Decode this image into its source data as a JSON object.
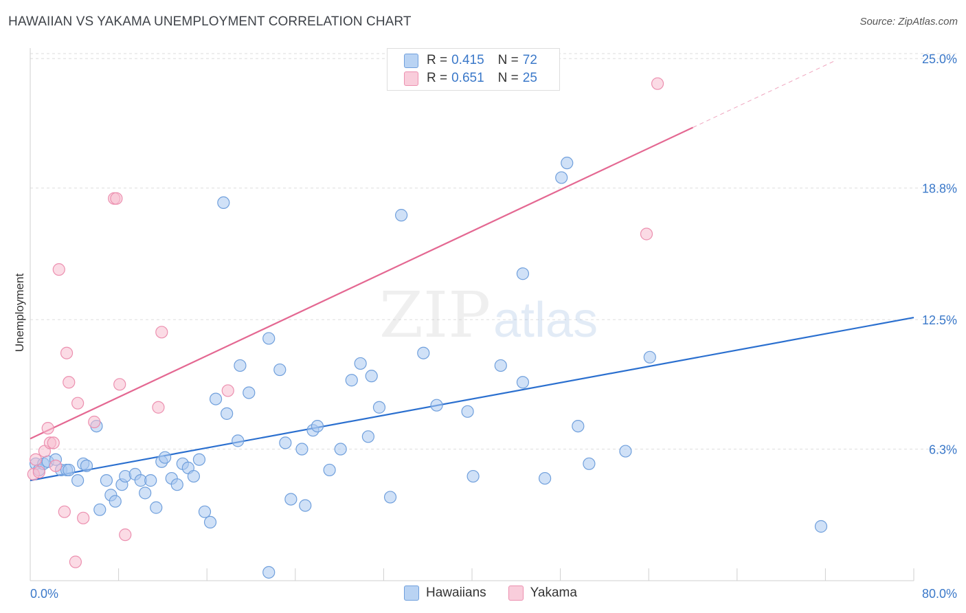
{
  "title": "HAWAIIAN VS YAKAMA UNEMPLOYMENT CORRELATION CHART",
  "source": "Source: ZipAtlas.com",
  "colors": {
    "hawaiians_fill": "#aac8f0",
    "hawaiians_stroke": "#6f9fdc",
    "hawaiians_line": "#2a6fcf",
    "yakama_fill": "#f7bdd0",
    "yakama_stroke": "#ec8faf",
    "yakama_line": "#e46892",
    "tick_text": "#3a78c9"
  },
  "legend": {
    "hawaiians": {
      "r_label": "R =",
      "r_value": "0.415",
      "n_label": "N =",
      "n_value": "72"
    },
    "yakama": {
      "r_label": "R =",
      "r_value": "0.651",
      "n_label": "N =",
      "n_value": "25"
    }
  },
  "watermark": {
    "zip": "ZIP",
    "atlas": "atlas"
  },
  "chart_data": {
    "type": "scatter",
    "title": "HAWAIIAN VS YAKAMA UNEMPLOYMENT CORRELATION CHART",
    "xlabel": "",
    "ylabel": "Unemployment",
    "xlim": [
      0,
      80
    ],
    "ylim": [
      0,
      25.5
    ],
    "x_tick_labels": [
      "0.0%",
      "80.0%"
    ],
    "y_ticks": [
      6.3,
      12.5,
      18.8,
      25.0
    ],
    "y_tick_labels": [
      "6.3%",
      "12.5%",
      "18.8%",
      "25.0%"
    ],
    "grid": true,
    "legend_position": "top-center",
    "series": [
      {
        "name": "Hawaiians",
        "points": [
          [
            0.5,
            5.6
          ],
          [
            0.8,
            5.3
          ],
          [
            1.2,
            5.6
          ],
          [
            1.6,
            5.7
          ],
          [
            2.3,
            5.8
          ],
          [
            2.8,
            5.3
          ],
          [
            3.3,
            5.3
          ],
          [
            3.5,
            5.3
          ],
          [
            4.3,
            4.8
          ],
          [
            4.8,
            5.6
          ],
          [
            5.1,
            5.5
          ],
          [
            6.0,
            7.4
          ],
          [
            6.3,
            3.4
          ],
          [
            6.9,
            4.8
          ],
          [
            7.3,
            4.1
          ],
          [
            7.7,
            3.8
          ],
          [
            8.3,
            4.6
          ],
          [
            8.6,
            5.0
          ],
          [
            9.5,
            5.1
          ],
          [
            10.0,
            4.8
          ],
          [
            10.4,
            4.2
          ],
          [
            10.9,
            4.8
          ],
          [
            11.4,
            3.5
          ],
          [
            11.9,
            5.7
          ],
          [
            12.2,
            5.9
          ],
          [
            12.8,
            4.9
          ],
          [
            13.3,
            4.6
          ],
          [
            13.8,
            5.6
          ],
          [
            14.3,
            5.4
          ],
          [
            14.8,
            5.0
          ],
          [
            15.3,
            5.8
          ],
          [
            15.8,
            3.3
          ],
          [
            16.3,
            2.8
          ],
          [
            16.8,
            8.7
          ],
          [
            17.5,
            18.1
          ],
          [
            17.8,
            8.0
          ],
          [
            18.8,
            6.7
          ],
          [
            19.0,
            10.3
          ],
          [
            19.8,
            9.0
          ],
          [
            21.6,
            11.6
          ],
          [
            21.6,
            0.4
          ],
          [
            22.6,
            10.1
          ],
          [
            23.1,
            6.6
          ],
          [
            23.6,
            3.9
          ],
          [
            24.6,
            6.3
          ],
          [
            24.9,
            3.6
          ],
          [
            25.6,
            7.2
          ],
          [
            26.0,
            7.4
          ],
          [
            27.1,
            5.3
          ],
          [
            28.1,
            6.3
          ],
          [
            29.1,
            9.6
          ],
          [
            29.9,
            10.4
          ],
          [
            30.6,
            6.9
          ],
          [
            30.9,
            9.8
          ],
          [
            31.6,
            8.3
          ],
          [
            32.6,
            4.0
          ],
          [
            33.6,
            17.5
          ],
          [
            35.6,
            10.9
          ],
          [
            36.8,
            8.4
          ],
          [
            39.6,
            8.1
          ],
          [
            40.1,
            5.0
          ],
          [
            42.6,
            10.3
          ],
          [
            44.6,
            9.5
          ],
          [
            44.6,
            14.7
          ],
          [
            46.6,
            4.9
          ],
          [
            48.1,
            19.3
          ],
          [
            48.6,
            20.0
          ],
          [
            49.6,
            7.4
          ],
          [
            50.6,
            5.6
          ],
          [
            53.9,
            6.2
          ],
          [
            56.1,
            10.7
          ],
          [
            71.6,
            2.6
          ]
        ]
      },
      {
        "name": "Yakama",
        "points": [
          [
            0.3,
            5.1
          ],
          [
            0.5,
            5.8
          ],
          [
            0.8,
            5.2
          ],
          [
            1.3,
            6.2
          ],
          [
            1.6,
            7.3
          ],
          [
            1.8,
            6.6
          ],
          [
            2.1,
            6.6
          ],
          [
            2.3,
            5.5
          ],
          [
            2.6,
            14.9
          ],
          [
            3.1,
            3.3
          ],
          [
            3.3,
            10.9
          ],
          [
            3.5,
            9.5
          ],
          [
            4.1,
            0.9
          ],
          [
            4.3,
            8.5
          ],
          [
            4.8,
            3.0
          ],
          [
            5.8,
            7.6
          ],
          [
            7.6,
            18.3
          ],
          [
            7.8,
            18.3
          ],
          [
            8.1,
            9.4
          ],
          [
            8.6,
            2.2
          ],
          [
            11.6,
            8.3
          ],
          [
            11.9,
            11.9
          ],
          [
            17.9,
            9.1
          ],
          [
            55.8,
            16.6
          ],
          [
            56.8,
            23.8
          ]
        ]
      }
    ],
    "trend_lines": [
      {
        "name": "Hawaiians",
        "x": [
          0,
          80
        ],
        "y": [
          4.8,
          12.6
        ]
      },
      {
        "name": "Yakama",
        "x": [
          0,
          60
        ],
        "y": [
          6.8,
          21.7
        ],
        "dashed_extension_x": [
          60,
          73
        ]
      }
    ]
  },
  "bottom_legend": [
    "Hawaiians",
    "Yakama"
  ]
}
